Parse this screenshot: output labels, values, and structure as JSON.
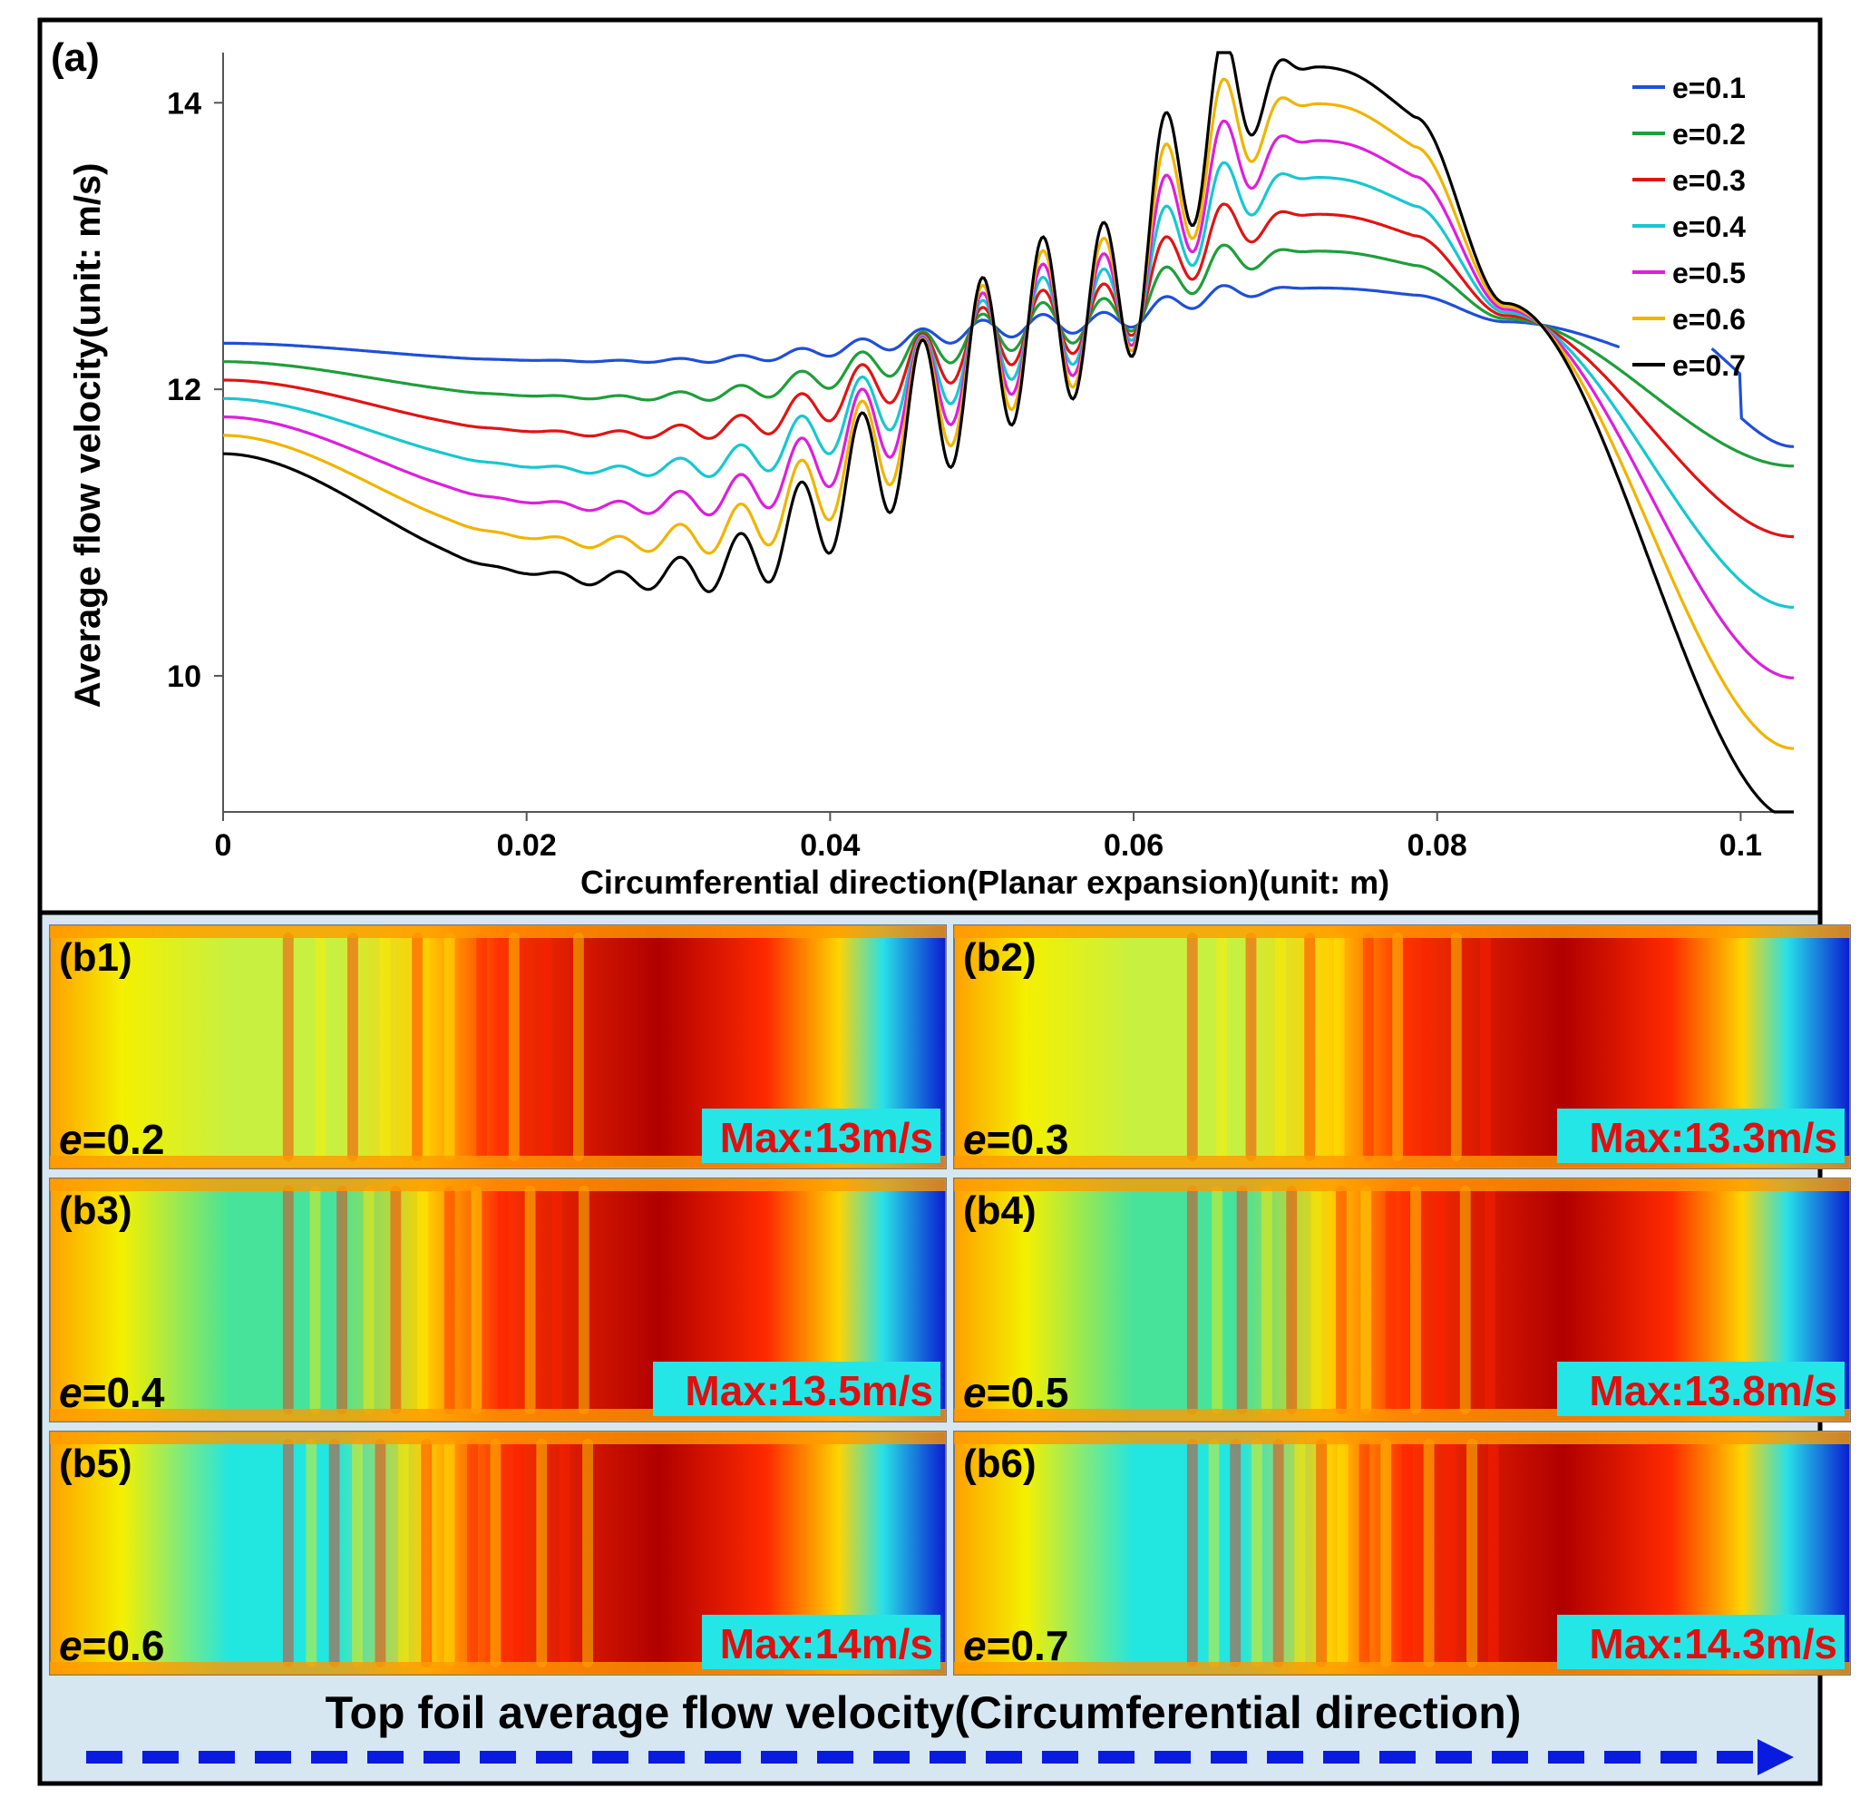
{
  "chart_data": {
    "type": "line",
    "panel_label": "(a)",
    "title": "",
    "xlabel": "Circumferential direction(Planar expansion)(unit: m)",
    "ylabel": "Average flow velocity(unit: m/s)",
    "xlim": [
      0,
      0.1035
    ],
    "ylim": [
      9.05,
      14.35
    ],
    "xticks": [
      0,
      0.02,
      0.04,
      0.06,
      0.08,
      0.1
    ],
    "xtick_labels": [
      "0",
      "0.02",
      "0.04",
      "0.06",
      "0.08",
      "0.1"
    ],
    "yticks": [
      10,
      12,
      14
    ],
    "ytick_labels": [
      "10",
      "12",
      "14"
    ],
    "grid": false,
    "legend_position": "top-right",
    "series": [
      {
        "name": "e=0.1",
        "color": "#1f4fd6",
        "e": 0.1,
        "max": 12.75
      },
      {
        "name": "e=0.2",
        "color": "#1e9e3a",
        "e": 0.2,
        "max": 13.0
      },
      {
        "name": "e=0.3",
        "color": "#e01414",
        "e": 0.3,
        "max": 13.3
      },
      {
        "name": "e=0.4",
        "color": "#17c7cf",
        "e": 0.4,
        "max": 13.5
      },
      {
        "name": "e=0.5",
        "color": "#dc1fdc",
        "e": 0.5,
        "max": 13.8
      },
      {
        "name": "e=0.6",
        "color": "#f0b400",
        "e": 0.6,
        "max": 14.0
      },
      {
        "name": "e=0.7",
        "color": "#000000",
        "e": 0.7,
        "max": 14.3
      }
    ]
  },
  "contours": {
    "panels": [
      {
        "label": "(b1)",
        "e_prefix": "e",
        "e_value": "=0.2",
        "max_text": "Max:13m/s",
        "e": 0.2
      },
      {
        "label": "(b2)",
        "e_prefix": "e",
        "e_value": "=0.3",
        "max_text": "Max:13.3m/s",
        "e": 0.3
      },
      {
        "label": "(b3)",
        "e_prefix": "e",
        "e_value": "=0.4",
        "max_text": "Max:13.5m/s",
        "e": 0.4
      },
      {
        "label": "(b4)",
        "e_prefix": "e",
        "e_value": "=0.5",
        "max_text": "Max:13.8m/s",
        "e": 0.5
      },
      {
        "label": "(b5)",
        "e_prefix": "e",
        "e_value": "=0.6",
        "max_text": "Max:14m/s",
        "e": 0.6
      },
      {
        "label": "(b6)",
        "e_prefix": "e",
        "e_value": "=0.7",
        "max_text": "Max:14.3m/s",
        "e": 0.7
      }
    ],
    "caption": "Top foil average flow velocity(Circumferential direction)",
    "arrow_color": "#0a1be0",
    "max_label_text_color": "#e01010",
    "max_label_bg_color": "#25e6e6"
  }
}
